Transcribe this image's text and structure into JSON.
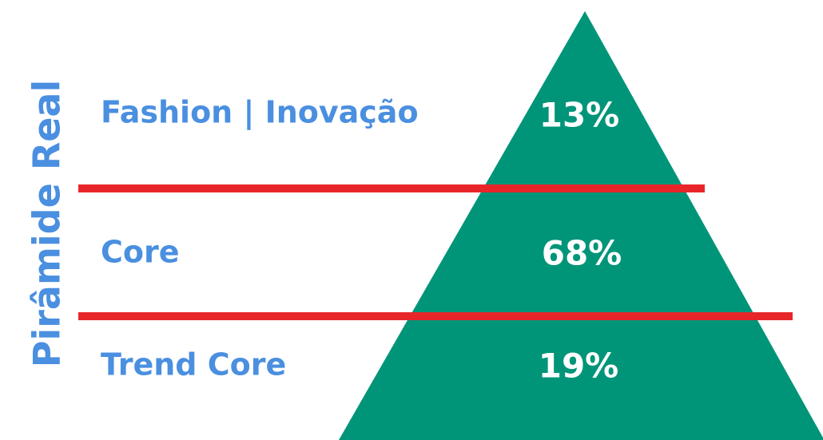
{
  "title": "Pirâmide Real",
  "levels": [
    {
      "label": "Fashion | Inovação",
      "value": "13%"
    },
    {
      "label": "Core",
      "value": "68%"
    },
    {
      "label": "Trend Core",
      "value": "19%"
    }
  ]
}
